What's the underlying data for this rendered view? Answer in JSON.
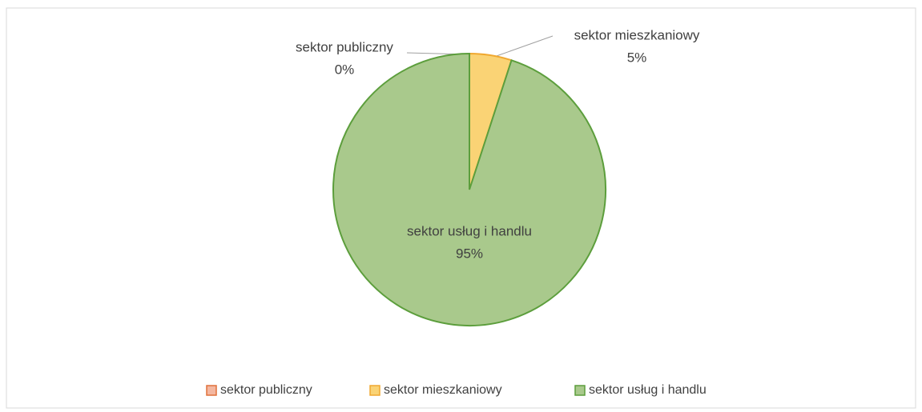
{
  "chart_data": {
    "type": "pie",
    "categories": [
      "sektor publiczny",
      "sektor mieszkaniowy",
      "sektor usług i handlu"
    ],
    "values": [
      0,
      5,
      95
    ],
    "value_labels": [
      "0%",
      "5%",
      "95%"
    ],
    "colors": [
      "#f4b7a0",
      "#fad375",
      "#a9c98c"
    ],
    "edgecolors": [
      "#e0703a",
      "#f0a830",
      "#5c9e3c"
    ],
    "legend": "bottom"
  }
}
